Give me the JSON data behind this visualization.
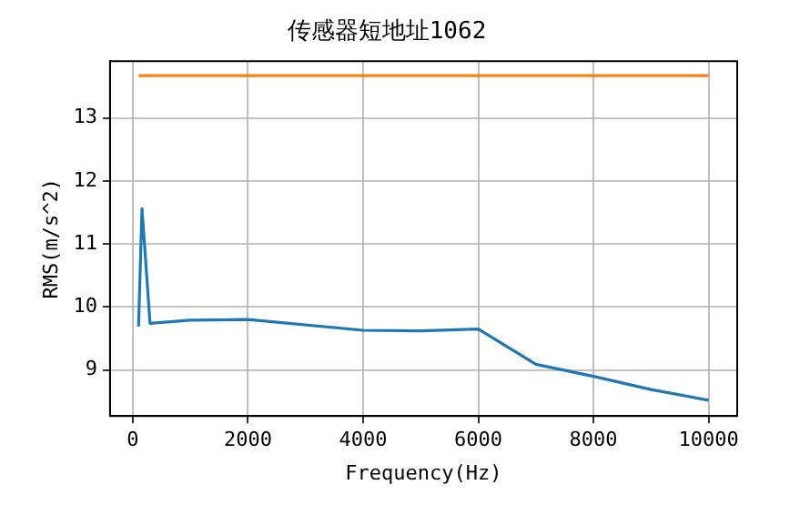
{
  "chart_data": {
    "type": "line",
    "title": "传感器短地址1062",
    "xlabel": "Frequency(Hz)",
    "ylabel": "RMS(m/s^2)",
    "xlim": [
      -395,
      10495
    ],
    "xticks": [
      0,
      2000,
      4000,
      6000,
      8000,
      10000
    ],
    "ylim": [
      8.27,
      13.9
    ],
    "yticks": [
      9,
      10,
      11,
      12,
      13
    ],
    "grid": true,
    "series": [
      {
        "color": "#1f77b4",
        "x": [
          100,
          160,
          300,
          1000,
          2000,
          4000,
          5000,
          6000,
          7000,
          8000,
          9000,
          10000
        ],
        "values": [
          9.69,
          11.56,
          9.74,
          9.79,
          9.8,
          9.63,
          9.62,
          9.65,
          9.09,
          8.9,
          8.69,
          8.52
        ]
      },
      {
        "color": "#ff7f0e",
        "x": [
          100,
          10000
        ],
        "values": [
          13.67,
          13.67
        ]
      }
    ]
  }
}
